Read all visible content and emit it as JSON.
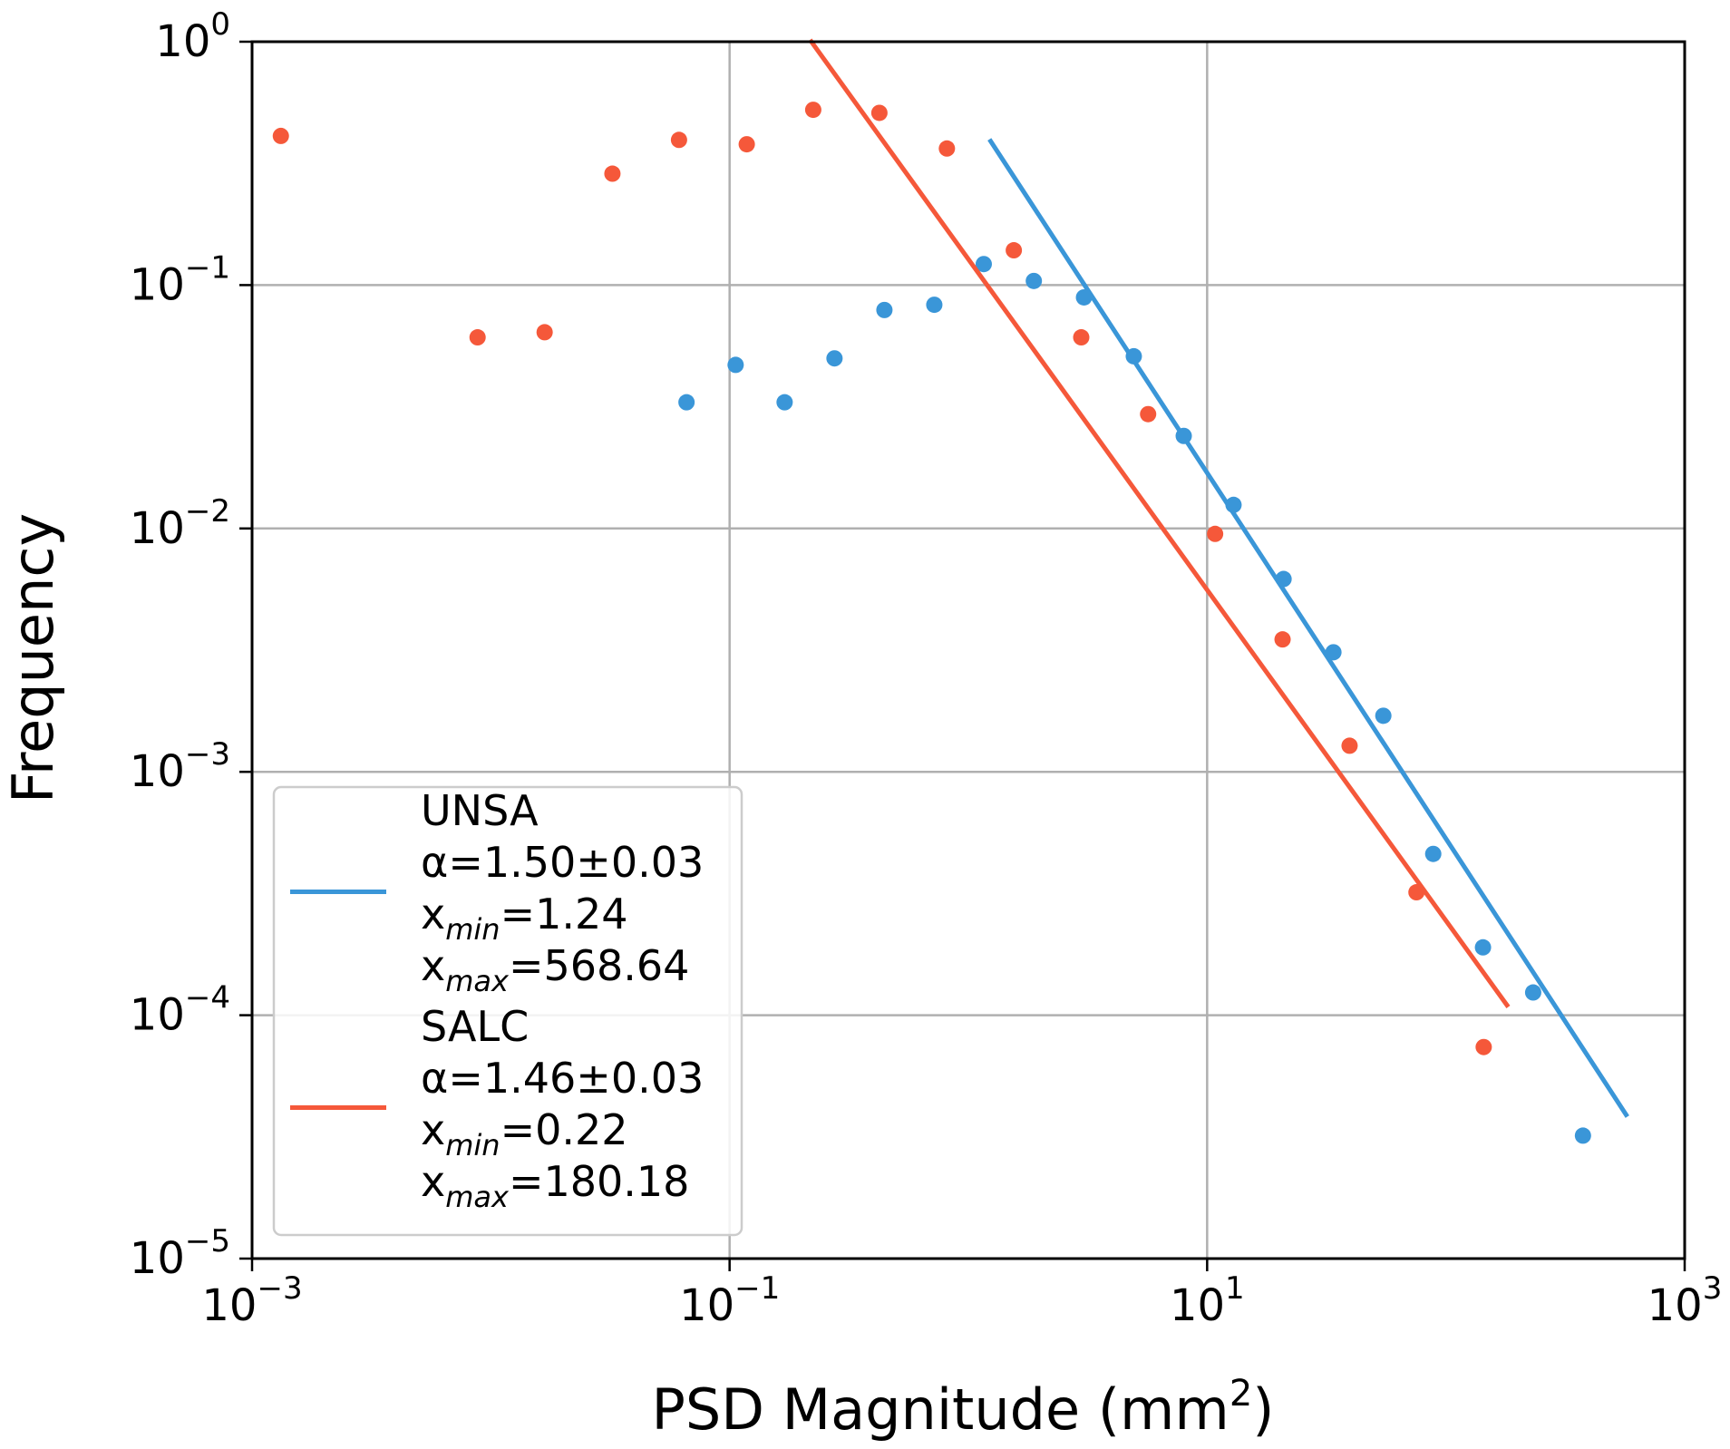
{
  "chart_data": {
    "type": "scatter",
    "title": "",
    "xlabel": "PSD Magnitude (mm",
    "xlabel_sup": "2",
    "xlabel_end": ")",
    "ylabel": "Frequency",
    "xscale": "log",
    "yscale": "log",
    "xlim": [
      0.001,
      1000
    ],
    "ylim": [
      1e-05,
      1
    ],
    "grid": true,
    "legend_position": "lower-left",
    "x_ticks": [
      {
        "value": 0.001,
        "base": "10",
        "exp": "−3"
      },
      {
        "value": 0.1,
        "base": "10",
        "exp": "−1"
      },
      {
        "value": 10,
        "base": "10",
        "exp": "1"
      },
      {
        "value": 1000,
        "base": "10",
        "exp": "3"
      }
    ],
    "y_ticks": [
      {
        "value": 1,
        "base": "10",
        "exp": "0"
      },
      {
        "value": 0.1,
        "base": "10",
        "exp": "−1"
      },
      {
        "value": 0.01,
        "base": "10",
        "exp": "−2"
      },
      {
        "value": 0.001,
        "base": "10",
        "exp": "−3"
      },
      {
        "value": 0.0001,
        "base": "10",
        "exp": "−4"
      },
      {
        "value": 1e-05,
        "base": "10",
        "exp": "−5"
      }
    ],
    "series": [
      {
        "name": "UNSA",
        "color": "#3a96d8",
        "alpha_label": "α=1.50±0.03",
        "xmin_value": "=1.24",
        "xmax_value": "=568.64",
        "points": [
          [
            0.066,
            0.033
          ],
          [
            0.106,
            0.047
          ],
          [
            0.17,
            0.033
          ],
          [
            0.275,
            0.05
          ],
          [
            0.445,
            0.079
          ],
          [
            0.72,
            0.083
          ],
          [
            1.16,
            0.122
          ],
          [
            1.88,
            0.104
          ],
          [
            3.05,
            0.089
          ],
          [
            4.93,
            0.051
          ],
          [
            7.98,
            0.024
          ],
          [
            12.9,
            0.0125
          ],
          [
            20.9,
            0.0062
          ],
          [
            33.8,
            0.0031
          ],
          [
            54.7,
            0.0017
          ],
          [
            88.5,
            0.00046
          ],
          [
            143,
            0.00019
          ],
          [
            232,
            0.000124
          ],
          [
            375,
            3.2e-05
          ]
        ],
        "fit_line": [
          [
            1.24,
            0.39
          ],
          [
            568.64,
            3.9e-05
          ]
        ]
      },
      {
        "name": "SALC",
        "color": "#f5583a",
        "alpha_label": "α=1.46±0.03",
        "xmin_value": "=0.22",
        "xmax_value": "=180.18",
        "points": [
          [
            0.00132,
            0.41
          ],
          [
            0.0088,
            0.061
          ],
          [
            0.0168,
            0.064
          ],
          [
            0.0323,
            0.287
          ],
          [
            0.0614,
            0.395
          ],
          [
            0.118,
            0.379
          ],
          [
            0.224,
            0.525
          ],
          [
            0.424,
            0.51
          ],
          [
            0.813,
            0.364
          ],
          [
            1.55,
            0.139
          ],
          [
            2.97,
            0.061
          ],
          [
            5.66,
            0.0295
          ],
          [
            10.8,
            0.0095
          ],
          [
            20.7,
            0.0035
          ],
          [
            39.5,
            0.00128
          ],
          [
            75.3,
            0.00032
          ],
          [
            144,
            7.4e-05
          ]
        ],
        "fit_line": [
          [
            0.22,
            1.0
          ],
          [
            180.18,
            0.00011
          ]
        ]
      }
    ],
    "legend_labels": {
      "x_char": "x",
      "min_sub": "min",
      "max_sub": "max"
    }
  }
}
